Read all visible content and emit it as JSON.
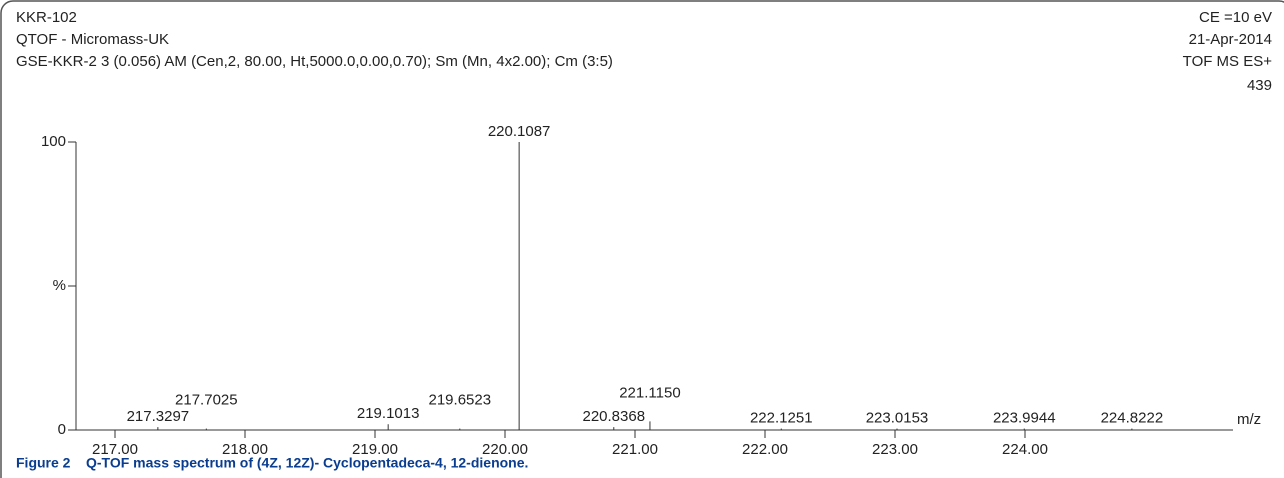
{
  "header": {
    "left": [
      "KKR-102",
      "QTOF - Micromass-UK",
      "GSE-KKR-2 3 (0.056) AM (Cen,2, 80.00, Ht,5000.0,0.00,0.70); Sm (Mn, 4x2.00); Cm (3:5)"
    ],
    "right": [
      "CE =10 eV",
      "21-Apr-2014",
      "TOF MS ES+",
      "439"
    ]
  },
  "chart_data": {
    "type": "spectrum",
    "x_label": "m/z",
    "x": [
      217.3297,
      217.7025,
      219.1013,
      219.6523,
      220.1087,
      220.8368,
      221.115,
      222.1251,
      223.0153,
      223.9944,
      224.8222
    ],
    "values": [
      1,
      0.5,
      2,
      0.5,
      100,
      1,
      3,
      0.5,
      0.5,
      0.5,
      0.5
    ],
    "value_labels": [
      "217.3297",
      "217.7025",
      "219.1013",
      "219.6523",
      "220.1087",
      "220.8368",
      "221.1150",
      "222.1251",
      "223.0153",
      "223.9944",
      "224.8222"
    ],
    "color": "#333333",
    "xlim": [
      216.7,
      225.6
    ],
    "xticks": [
      {
        "value": 217,
        "label": "217.00"
      },
      {
        "value": 218,
        "label": "218.00"
      },
      {
        "value": 219,
        "label": "219.00"
      },
      {
        "value": 220,
        "label": "220.00"
      },
      {
        "value": 221,
        "label": "221.00"
      },
      {
        "value": 222,
        "label": "222.00"
      },
      {
        "value": 223,
        "label": "223.00"
      },
      {
        "value": 224,
        "label": "224.00"
      }
    ],
    "ylim": [
      0,
      100
    ],
    "yticks": [
      0,
      {
        "value": 50,
        "label": "%"
      },
      100
    ]
  },
  "caption": {
    "label": "Figure 2",
    "text": "Q-TOF mass spectrum of (4Z, 12Z)- Cyclopentadeca-4, 12-dienone."
  }
}
